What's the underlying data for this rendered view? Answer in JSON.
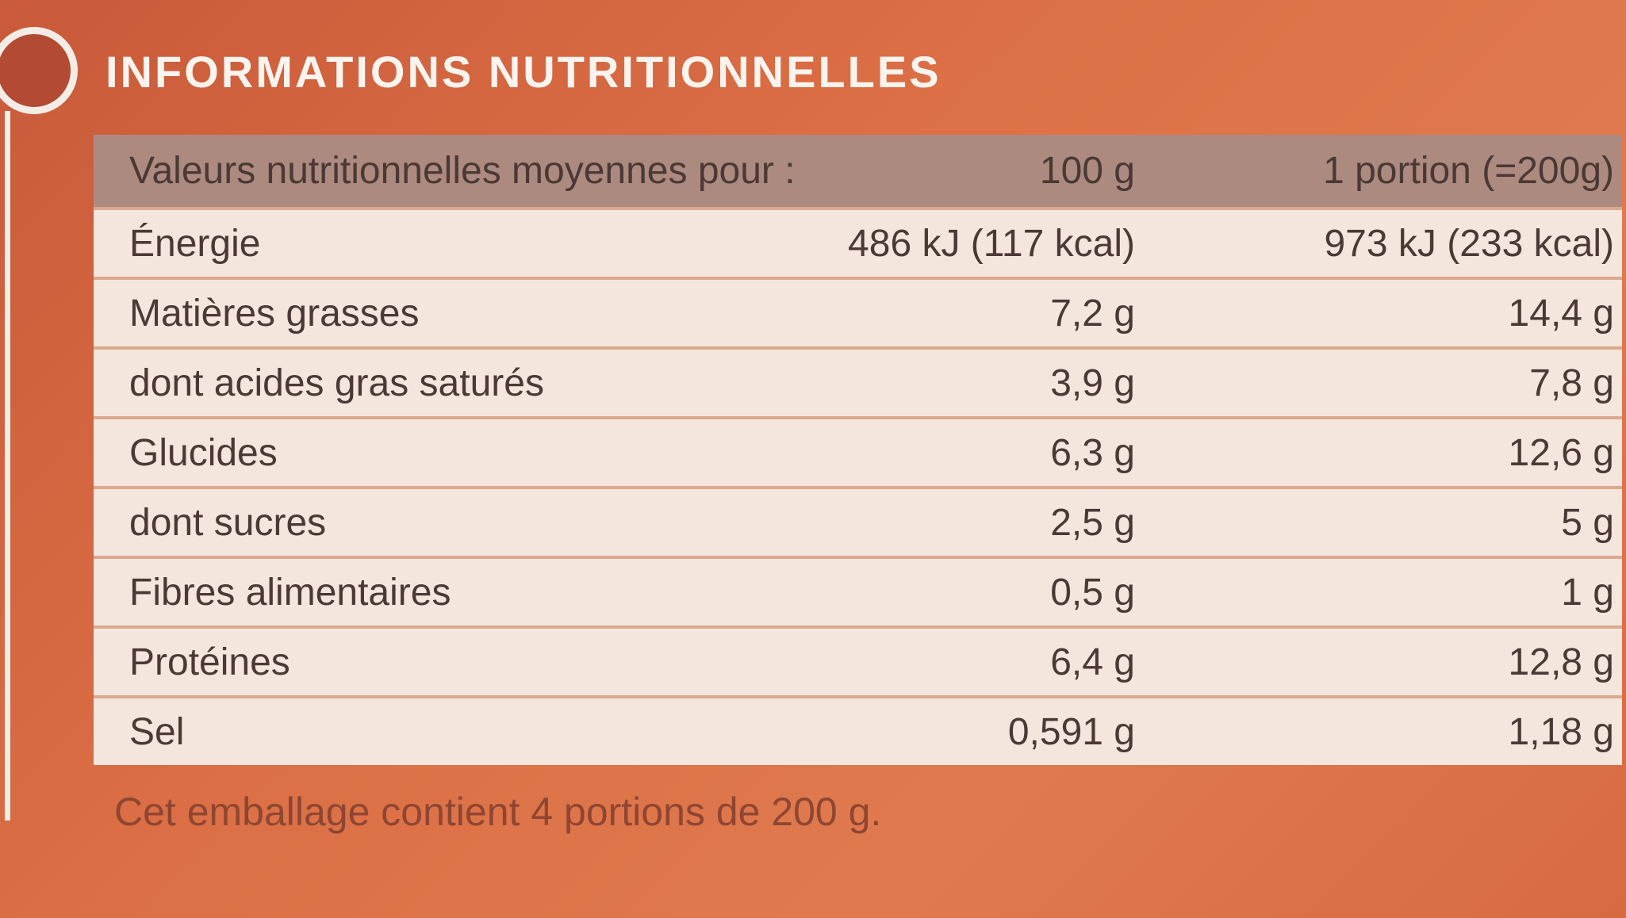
{
  "header": {
    "title": "INFORMATIONS NUTRITIONNELLES"
  },
  "table": {
    "header": [
      "Valeurs nutritionnelles moyennes pour :",
      "100 g",
      "1 portion (=200g)"
    ],
    "rows": [
      [
        "Énergie",
        "486 kJ (117 kcal)",
        "973 kJ (233 kcal)"
      ],
      [
        "Matières grasses",
        "7,2 g",
        "14,4 g"
      ],
      [
        "dont acides gras saturés",
        "3,9 g",
        "7,8 g"
      ],
      [
        "Glucides",
        "6,3 g",
        "12,6 g"
      ],
      [
        "dont sucres",
        "2,5 g",
        "5 g"
      ],
      [
        "Fibres alimentaires",
        "0,5 g",
        "1 g"
      ],
      [
        "Protéines",
        "6,4 g",
        "12,8 g"
      ],
      [
        "Sel",
        "0,591 g",
        "1,18 g"
      ]
    ]
  },
  "footer": "Cet emballage contient 4 portions de 200 g."
}
